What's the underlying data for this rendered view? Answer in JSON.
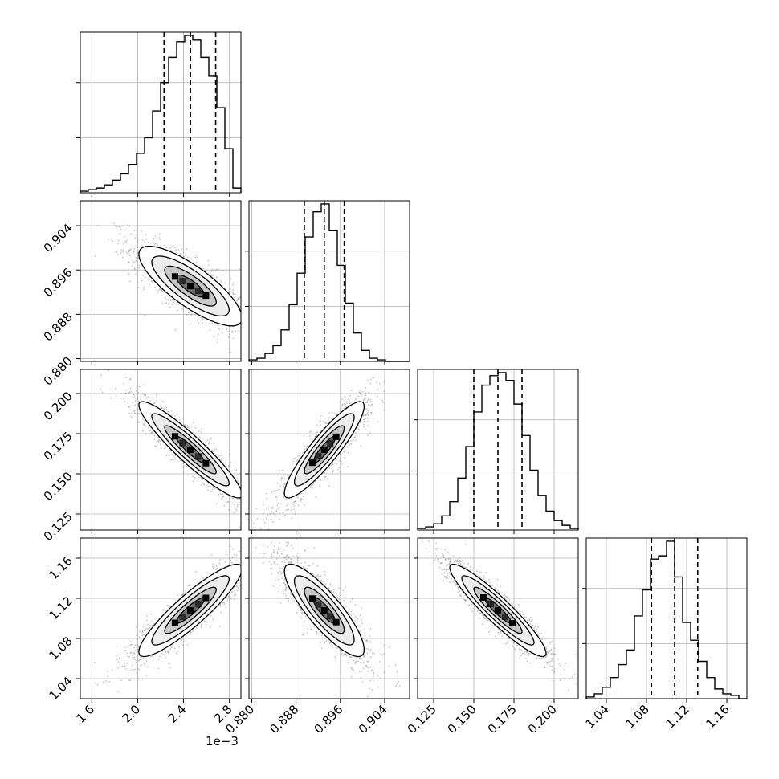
{
  "chart_data": {
    "type": "corner",
    "title": "",
    "parameters": [
      {
        "name": "",
        "display_scale": "1e-3",
        "range": [
          1.5,
          2.9
        ],
        "ticks": [
          1.6,
          2.0,
          2.4,
          2.8
        ],
        "tick_labels": [
          "1.6",
          "2.0",
          "2.4",
          "2.8"
        ],
        "offset_label": "1e−3",
        "quantiles": [
          2.23,
          2.46,
          2.68
        ],
        "hist_bins": [
          1.5,
          2.9
        ],
        "hist_counts": [
          1,
          2,
          3,
          5,
          8,
          12,
          18,
          25,
          35,
          52,
          70,
          86,
          96,
          100,
          97,
          86,
          74,
          54,
          28,
          3
        ]
      },
      {
        "name": "",
        "range": [
          0.8795,
          0.9085
        ],
        "ticks": [
          0.88,
          0.888,
          0.896,
          0.904
        ],
        "tick_labels": [
          "0.880",
          "0.888",
          "0.896",
          "0.904"
        ],
        "quantiles": [
          0.8895,
          0.8931,
          0.8967
        ],
        "hist_bins": [
          0.8795,
          0.9085
        ],
        "hist_counts": [
          1,
          2,
          5,
          10,
          20,
          36,
          56,
          79,
          95,
          100,
          83,
          61,
          37,
          18,
          7,
          2,
          1,
          0,
          0,
          0
        ]
      },
      {
        "name": "",
        "range": [
          0.115,
          0.215
        ],
        "ticks": [
          0.125,
          0.15,
          0.175,
          0.2
        ],
        "tick_labels": [
          "0.125",
          "0.150",
          "0.175",
          "0.200"
        ],
        "quantiles": [
          0.15,
          0.165,
          0.18
        ],
        "hist_bins": [
          0.115,
          0.215
        ],
        "hist_counts": [
          1,
          2,
          4,
          9,
          18,
          33,
          53,
          75,
          92,
          98,
          100,
          95,
          80,
          60,
          38,
          22,
          12,
          6,
          3,
          1
        ]
      },
      {
        "name": "",
        "range": [
          1.02,
          1.18
        ],
        "ticks": [
          1.04,
          1.08,
          1.12,
          1.16
        ],
        "tick_labels": [
          "1.04",
          "1.08",
          "1.12",
          "1.16"
        ],
        "quantiles": [
          1.085,
          1.108,
          1.131
        ],
        "hist_bins": [
          1.02,
          1.18
        ],
        "hist_counts": [
          1,
          3,
          7,
          13,
          21,
          30,
          51,
          67,
          86,
          88,
          97,
          75,
          47,
          36,
          23,
          13,
          6,
          3,
          2,
          0
        ]
      }
    ],
    "correlations": [
      [
        0,
        1,
        -0.8
      ],
      [
        0,
        2,
        -0.93
      ],
      [
        0,
        3,
        0.9
      ],
      [
        1,
        2,
        0.9
      ],
      [
        1,
        3,
        -0.85
      ],
      [
        2,
        3,
        -0.93
      ]
    ],
    "contour_levels_sigma": [
      0.5,
      1.0,
      1.5,
      2.0
    ],
    "grid": true,
    "xlabel": "",
    "ylabel": ""
  }
}
